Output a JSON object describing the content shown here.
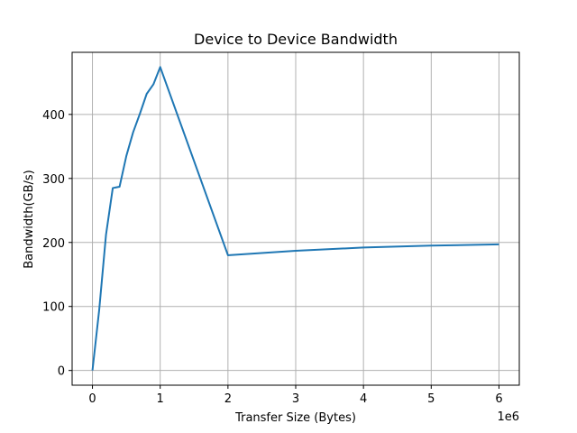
{
  "chart_data": {
    "type": "line",
    "title": "Device to Device Bandwidth",
    "xlabel": "Transfer Size (Bytes)",
    "ylabel": "Bandwidth(GB/s)",
    "x_offset_label": "1e6",
    "xlim": [
      -300000,
      6300000
    ],
    "ylim": [
      -23,
      497
    ],
    "xticks": [
      0,
      1000000,
      2000000,
      3000000,
      4000000,
      5000000,
      6000000
    ],
    "xtick_labels": [
      "0",
      "1",
      "2",
      "3",
      "4",
      "5",
      "6"
    ],
    "yticks": [
      0,
      100,
      200,
      300,
      400
    ],
    "ytick_labels": [
      "0",
      "100",
      "200",
      "300",
      "400"
    ],
    "grid": true,
    "series": [
      {
        "color": "#1f77b4",
        "x": [
          0,
          100000,
          200000,
          300000,
          400000,
          500000,
          600000,
          700000,
          800000,
          900000,
          1000000,
          2000000,
          3000000,
          4000000,
          5000000,
          6000000
        ],
        "y": [
          0,
          95,
          212,
          285,
          287,
          335,
          372,
          401,
          432,
          447,
          474,
          180,
          187,
          192,
          195,
          197
        ]
      }
    ]
  }
}
